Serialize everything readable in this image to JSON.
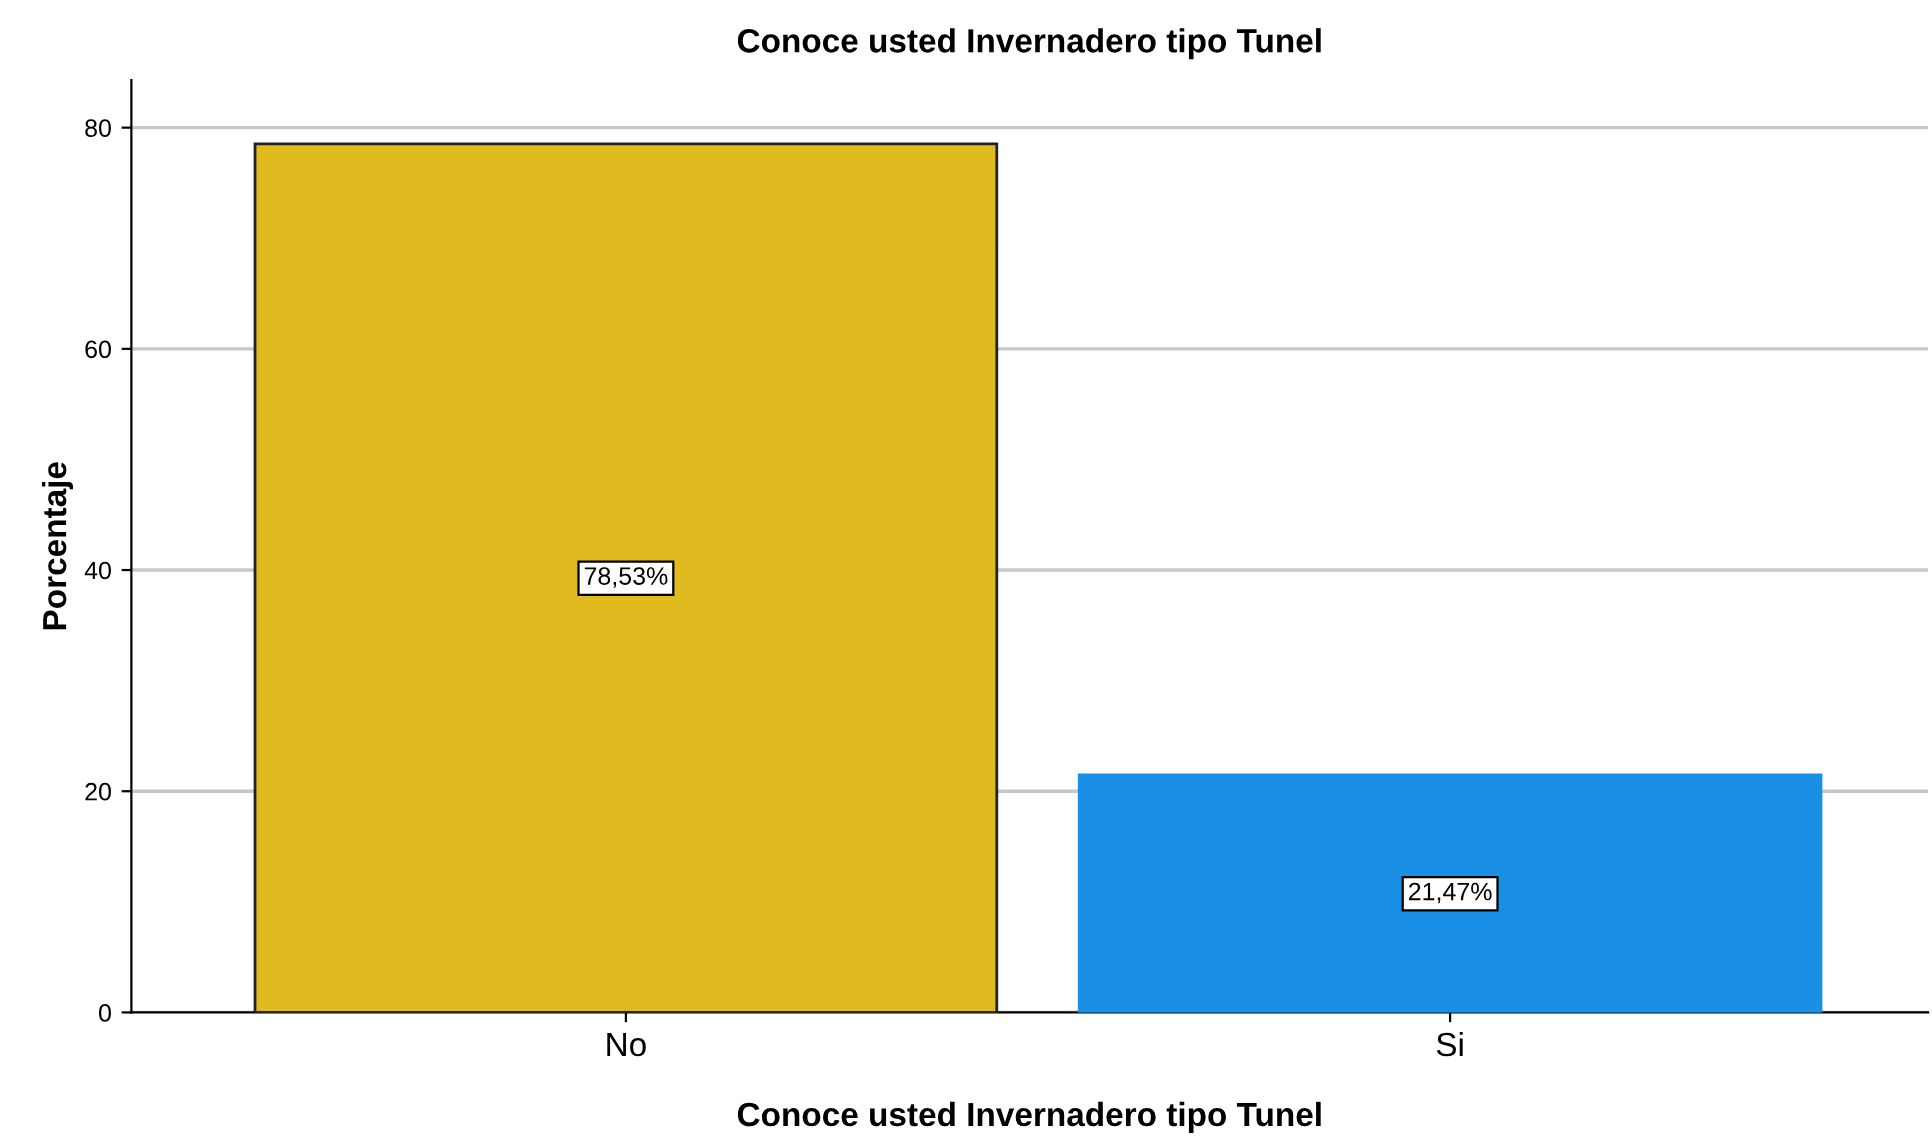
{
  "chart_data": {
    "type": "bar",
    "title": "Conoce usted Invernadero tipo Tunel",
    "xlabel": "Conoce usted Invernadero tipo Tunel",
    "ylabel": "Porcentaje",
    "categories": [
      "No",
      "Si"
    ],
    "values": [
      78.53,
      21.47
    ],
    "colors": [
      "#e0bb1f",
      "#1990e6"
    ],
    "value_labels": [
      "78,53%",
      "21,47%"
    ],
    "ylim": [
      0,
      84.3
    ],
    "yticks": [
      0,
      20,
      40,
      60,
      80
    ],
    "grid": "y",
    "legend": false
  }
}
